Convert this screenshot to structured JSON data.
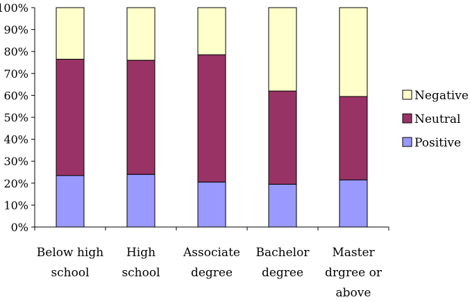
{
  "chart_data": {
    "type": "bar",
    "stacked": true,
    "percent_stacked": true,
    "categories": [
      [
        "Below high",
        "school"
      ],
      [
        "High",
        "school"
      ],
      [
        "Associate",
        "degree"
      ],
      [
        "Bachelor",
        "degree"
      ],
      [
        "Master",
        "drgree or",
        "above"
      ]
    ],
    "series": [
      {
        "name": "Positive",
        "color": "#9999ff",
        "values": [
          23.5,
          24,
          20.5,
          19.5,
          21.5
        ]
      },
      {
        "name": "Neutral",
        "color": "#993366",
        "values": [
          53,
          52,
          58,
          42.5,
          38
        ]
      },
      {
        "name": "Negative",
        "color": "#ffffcc",
        "values": [
          23.5,
          24,
          21.5,
          38,
          40.5
        ]
      }
    ],
    "ylim": [
      0,
      100
    ],
    "ytick_labels": [
      "0%",
      "10%",
      "20%",
      "30%",
      "40%",
      "50%",
      "60%",
      "70%",
      "80%",
      "90%",
      "100%"
    ],
    "grid": false,
    "legend_position": "right",
    "legend_order": [
      "Negative",
      "Neutral",
      "Positive"
    ]
  }
}
